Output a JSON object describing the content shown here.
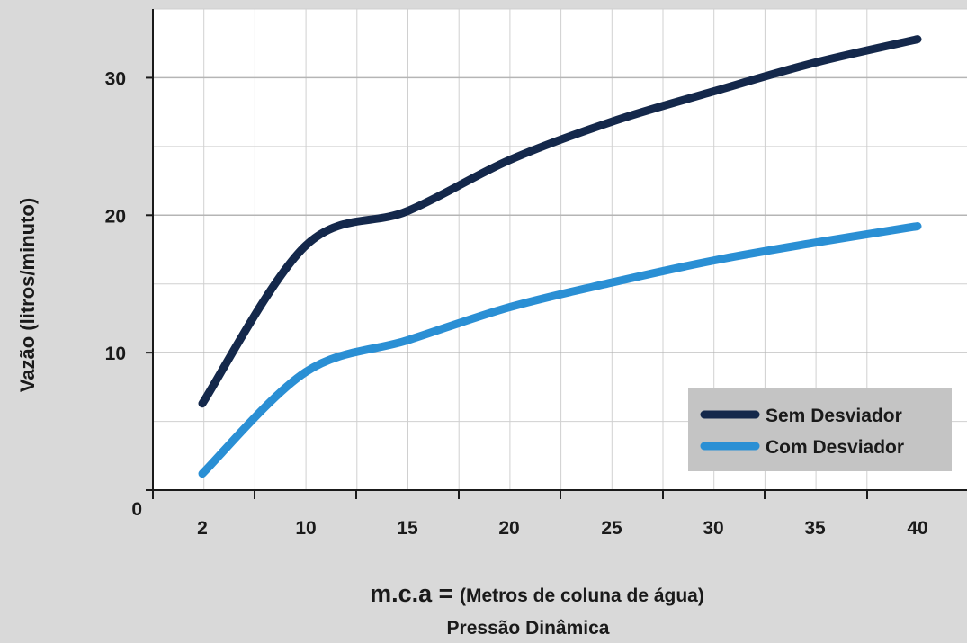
{
  "chart_data": {
    "type": "line",
    "xlabel": "(Metros de coluna de água)",
    "xlabel_prefix": "m.c.a = ",
    "xlabel_sub": "Pressão Dinâmica",
    "ylabel": "Vazão (litros/minuto)",
    "categories": [
      "2",
      "10",
      "15",
      "20",
      "25",
      "30",
      "35",
      "40"
    ],
    "x_tick_labels": [
      "2",
      "10",
      "15",
      "20",
      "25",
      "30",
      "35",
      "40"
    ],
    "y_tick_labels": [
      "0",
      "10",
      "20",
      "30"
    ],
    "y_ticks": [
      0,
      10,
      20,
      30
    ],
    "ylim": [
      0,
      35
    ],
    "grid": true,
    "legend_position": "bottom-right",
    "series": [
      {
        "name": "Sem Desviador",
        "color": "#14284b",
        "values": [
          6.3,
          17.8,
          20.3,
          24.0,
          26.8,
          29.0,
          31.1,
          32.8
        ]
      },
      {
        "name": "Com Desviador",
        "color": "#2a8fd4",
        "values": [
          1.2,
          8.6,
          10.9,
          13.3,
          15.1,
          16.7,
          18.0,
          19.2
        ]
      }
    ]
  }
}
